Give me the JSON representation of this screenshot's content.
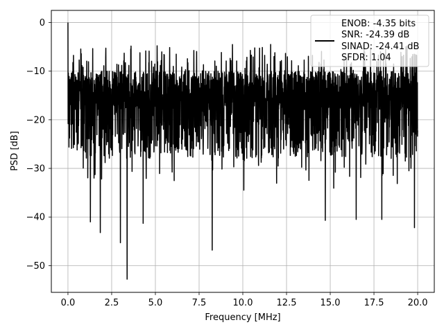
{
  "chart_data": {
    "type": "line",
    "title": "",
    "xlabel": "Frequency [MHz]",
    "ylabel": "PSD [dB]",
    "xlim": [
      -0.95,
      20.95
    ],
    "ylim": [
      -55.5,
      2.5
    ],
    "xticks": [
      0.0,
      2.5,
      5.0,
      7.5,
      10.0,
      12.5,
      15.0,
      17.5,
      20.0
    ],
    "xtick_labels": [
      "0.0",
      "2.5",
      "5.0",
      "7.5",
      "10.0",
      "12.5",
      "15.0",
      "17.5",
      "20.0"
    ],
    "yticks": [
      0,
      -10,
      -20,
      -30,
      -40,
      -50
    ],
    "ytick_labels": [
      "0",
      "−10",
      "−20",
      "−30",
      "−40",
      "−50"
    ],
    "grid": true,
    "legend_position": "top-right",
    "line_color": "#000000",
    "legend_lines": [
      "ENOB: -4.35 bits",
      "SNR: -24.39 dB",
      "SINAD: -24.41 dB",
      "SFDR: 1.04"
    ],
    "series": [
      {
        "x_start": 0.0,
        "x_end": 20.0,
        "typical_upper_db": -10,
        "typical_lower_db": -28,
        "annotated_points": [
          {
            "x": 0.0,
            "y": 0.0
          },
          {
            "x": 1.28,
            "y": -41.0
          },
          {
            "x": 1.85,
            "y": -43.2
          },
          {
            "x": 3.0,
            "y": -45.3
          },
          {
            "x": 3.38,
            "y": -52.8
          },
          {
            "x": 4.3,
            "y": -41.3
          },
          {
            "x": 8.25,
            "y": -46.8
          },
          {
            "x": 14.72,
            "y": -40.7
          },
          {
            "x": 16.48,
            "y": -40.5
          },
          {
            "x": 17.95,
            "y": -40.5
          },
          {
            "x": 19.82,
            "y": -42.2
          }
        ]
      }
    ]
  }
}
